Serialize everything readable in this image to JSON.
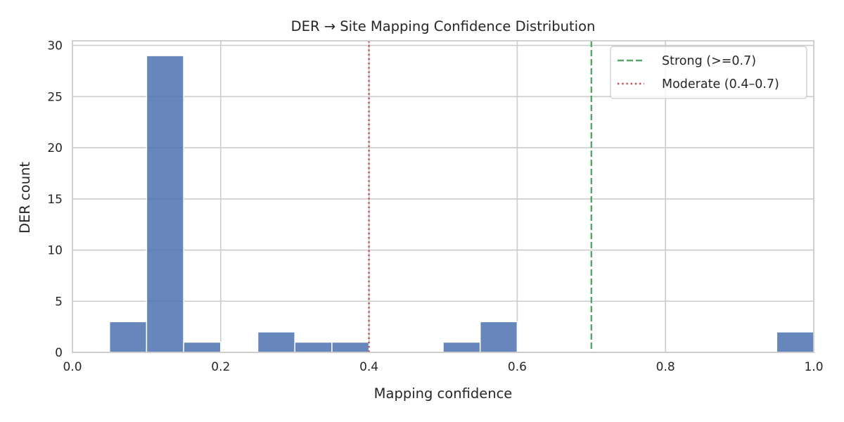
{
  "chart_data": {
    "type": "bar",
    "title": "DER → Site Mapping Confidence Distribution",
    "xlabel": "Mapping confidence",
    "ylabel": "DER count",
    "xlim": [
      0,
      1
    ],
    "ylim": [
      0,
      30.45
    ],
    "xticks": [
      0.0,
      0.2,
      0.4,
      0.6,
      0.8,
      1.0
    ],
    "xtick_labels": [
      "0.0",
      "0.2",
      "0.4",
      "0.6",
      "0.8",
      "1.0"
    ],
    "yticks": [
      0,
      5,
      10,
      15,
      20,
      25,
      30
    ],
    "ytick_labels": [
      "0",
      "5",
      "10",
      "15",
      "20",
      "25",
      "30"
    ],
    "grid": true,
    "bins": [
      {
        "x0": 0.05,
        "x1": 0.1,
        "count": 3
      },
      {
        "x0": 0.1,
        "x1": 0.15,
        "count": 29
      },
      {
        "x0": 0.15,
        "x1": 0.2,
        "count": 1
      },
      {
        "x0": 0.25,
        "x1": 0.3,
        "count": 2
      },
      {
        "x0": 0.3,
        "x1": 0.35,
        "count": 1
      },
      {
        "x0": 0.35,
        "x1": 0.4,
        "count": 1
      },
      {
        "x0": 0.5,
        "x1": 0.55,
        "count": 1
      },
      {
        "x0": 0.55,
        "x1": 0.6,
        "count": 3
      },
      {
        "x0": 0.95,
        "x1": 1.0,
        "count": 2
      }
    ],
    "bar_color": "#4c72b0",
    "reference_lines": [
      {
        "x": 0.7,
        "label": "Strong (>=0.7)",
        "color": "#55a868",
        "style": "dashed"
      },
      {
        "x": 0.4,
        "label": "Moderate (0.4–0.7)",
        "color": "#c44e52",
        "style": "dotted"
      }
    ],
    "legend": {
      "position": "upper-right",
      "entries": [
        {
          "label": "Strong (>=0.7)",
          "color": "#55a868",
          "style": "dashed"
        },
        {
          "label": "Moderate (0.4–0.7)",
          "color": "#c44e52",
          "style": "dotted"
        }
      ]
    }
  }
}
